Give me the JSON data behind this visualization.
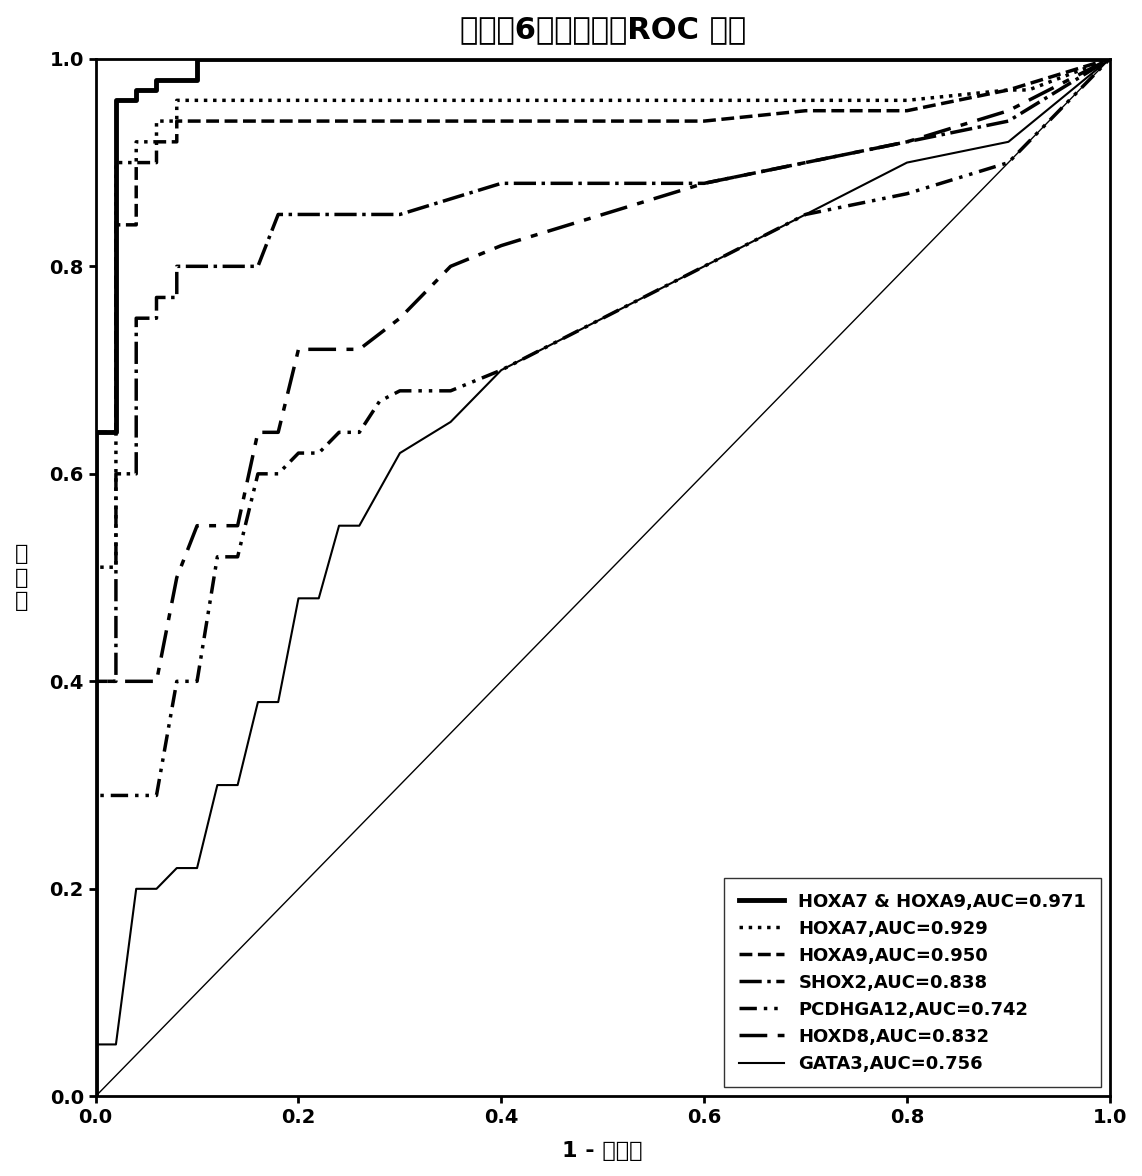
{
  "title": "痰液中6个标志物的ROC 曲线",
  "xlabel": "1 - 特异性",
  "ylabel": "敏\n感\n度",
  "curves": [
    {
      "label": "HOXA7 & HOXA9,AUC=0.971",
      "linestyle_name": "solid",
      "dash_pattern": null,
      "linewidth": 3.5,
      "color": "#000000",
      "x": [
        0.0,
        0.0,
        0.02,
        0.02,
        0.04,
        0.04,
        0.06,
        0.06,
        0.1,
        0.1,
        0.12,
        0.14,
        0.16,
        0.18,
        0.2,
        0.22,
        0.24,
        0.26,
        0.28,
        0.3,
        0.32,
        0.34,
        0.36,
        0.38,
        0.4,
        0.5,
        0.6,
        0.7,
        0.8,
        0.9,
        1.0
      ],
      "y": [
        0.0,
        0.64,
        0.64,
        0.96,
        0.96,
        0.97,
        0.97,
        0.98,
        0.98,
        1.0,
        1.0,
        1.0,
        1.0,
        1.0,
        1.0,
        1.0,
        1.0,
        1.0,
        1.0,
        1.0,
        1.0,
        1.0,
        1.0,
        1.0,
        1.0,
        1.0,
        1.0,
        1.0,
        1.0,
        1.0,
        1.0
      ]
    },
    {
      "label": "HOXA7,AUC=0.929",
      "linestyle_name": "dotted",
      "dash_pattern": null,
      "linewidth": 2.5,
      "color": "#000000",
      "x": [
        0.0,
        0.0,
        0.02,
        0.02,
        0.04,
        0.04,
        0.06,
        0.06,
        0.08,
        0.08,
        0.1,
        0.12,
        0.14,
        0.16,
        0.18,
        0.2,
        0.4,
        0.5,
        0.6,
        0.7,
        0.8,
        0.9,
        0.92,
        1.0
      ],
      "y": [
        0.0,
        0.51,
        0.51,
        0.9,
        0.9,
        0.92,
        0.92,
        0.94,
        0.94,
        0.96,
        0.96,
        0.96,
        0.96,
        0.96,
        0.96,
        0.96,
        0.96,
        0.96,
        0.96,
        0.96,
        0.96,
        0.97,
        0.97,
        1.0
      ]
    },
    {
      "label": "HOXA9,AUC=0.950",
      "linestyle_name": "dashed",
      "dash_pattern": null,
      "linewidth": 2.5,
      "color": "#000000",
      "x": [
        0.0,
        0.0,
        0.02,
        0.02,
        0.04,
        0.04,
        0.06,
        0.06,
        0.08,
        0.08,
        0.1,
        0.12,
        0.14,
        0.16,
        0.18,
        0.2,
        0.3,
        0.4,
        0.5,
        0.6,
        0.7,
        0.8,
        0.9,
        1.0
      ],
      "y": [
        0.0,
        0.64,
        0.64,
        0.84,
        0.84,
        0.9,
        0.9,
        0.92,
        0.92,
        0.94,
        0.94,
        0.94,
        0.94,
        0.94,
        0.94,
        0.94,
        0.94,
        0.94,
        0.94,
        0.94,
        0.95,
        0.95,
        0.97,
        1.0
      ]
    },
    {
      "label": "SHOX2,AUC=0.838",
      "linestyle_name": "dashdot",
      "dash_pattern": null,
      "linewidth": 2.5,
      "color": "#000000",
      "x": [
        0.0,
        0.0,
        0.02,
        0.02,
        0.04,
        0.04,
        0.06,
        0.06,
        0.08,
        0.08,
        0.1,
        0.12,
        0.14,
        0.16,
        0.18,
        0.2,
        0.25,
        0.3,
        0.4,
        0.5,
        0.6,
        0.7,
        0.8,
        0.9,
        1.0
      ],
      "y": [
        0.0,
        0.4,
        0.4,
        0.6,
        0.6,
        0.75,
        0.75,
        0.77,
        0.77,
        0.8,
        0.8,
        0.8,
        0.8,
        0.8,
        0.85,
        0.85,
        0.85,
        0.85,
        0.88,
        0.88,
        0.88,
        0.9,
        0.92,
        0.94,
        1.0
      ]
    },
    {
      "label": "PCDHGA12,AUC=0.742",
      "linestyle_name": "custom1",
      "dash_pattern": [
        5,
        2,
        1,
        2,
        1,
        2
      ],
      "linewidth": 2.5,
      "color": "#000000",
      "x": [
        0.0,
        0.0,
        0.02,
        0.04,
        0.06,
        0.08,
        0.1,
        0.12,
        0.14,
        0.16,
        0.18,
        0.2,
        0.22,
        0.24,
        0.26,
        0.28,
        0.3,
        0.35,
        0.4,
        0.5,
        0.6,
        0.7,
        0.8,
        0.9,
        1.0
      ],
      "y": [
        0.0,
        0.29,
        0.29,
        0.29,
        0.29,
        0.4,
        0.4,
        0.52,
        0.52,
        0.6,
        0.6,
        0.62,
        0.62,
        0.64,
        0.64,
        0.67,
        0.68,
        0.68,
        0.7,
        0.75,
        0.8,
        0.85,
        0.87,
        0.9,
        1.0
      ]
    },
    {
      "label": "HOXD8,AUC=0.832",
      "linestyle_name": "custom2",
      "dash_pattern": [
        8,
        3,
        2,
        3
      ],
      "linewidth": 2.5,
      "color": "#000000",
      "x": [
        0.0,
        0.0,
        0.02,
        0.04,
        0.06,
        0.08,
        0.1,
        0.12,
        0.14,
        0.16,
        0.18,
        0.2,
        0.22,
        0.24,
        0.26,
        0.3,
        0.35,
        0.4,
        0.5,
        0.6,
        0.7,
        0.8,
        0.9,
        1.0
      ],
      "y": [
        0.0,
        0.4,
        0.4,
        0.4,
        0.4,
        0.5,
        0.55,
        0.55,
        0.55,
        0.64,
        0.64,
        0.72,
        0.72,
        0.72,
        0.72,
        0.75,
        0.8,
        0.82,
        0.85,
        0.88,
        0.9,
        0.92,
        0.95,
        1.0
      ]
    },
    {
      "label": "GATA3,AUC=0.756",
      "linestyle_name": "solid",
      "dash_pattern": null,
      "linewidth": 1.5,
      "color": "#000000",
      "x": [
        0.0,
        0.0,
        0.02,
        0.04,
        0.06,
        0.08,
        0.1,
        0.12,
        0.14,
        0.16,
        0.18,
        0.2,
        0.22,
        0.24,
        0.26,
        0.3,
        0.35,
        0.4,
        0.5,
        0.6,
        0.7,
        0.8,
        0.9,
        1.0
      ],
      "y": [
        0.0,
        0.05,
        0.05,
        0.2,
        0.2,
        0.22,
        0.22,
        0.3,
        0.3,
        0.38,
        0.38,
        0.48,
        0.48,
        0.55,
        0.55,
        0.62,
        0.65,
        0.7,
        0.75,
        0.8,
        0.85,
        0.9,
        0.92,
        1.0
      ]
    }
  ],
  "diagonal": {
    "x": [
      0,
      1
    ],
    "y": [
      0,
      1
    ],
    "color": "#000000",
    "linewidth": 1.0
  },
  "xlim": [
    0.0,
    1.0
  ],
  "ylim": [
    0.0,
    1.0
  ],
  "xticks": [
    0.0,
    0.2,
    0.4,
    0.6,
    0.8,
    1.0
  ],
  "yticks": [
    0.0,
    0.2,
    0.4,
    0.6,
    0.8,
    1.0
  ],
  "legend_loc": "lower right",
  "legend_fontsize": 13,
  "title_fontsize": 22,
  "axis_label_fontsize": 16,
  "tick_fontsize": 14
}
